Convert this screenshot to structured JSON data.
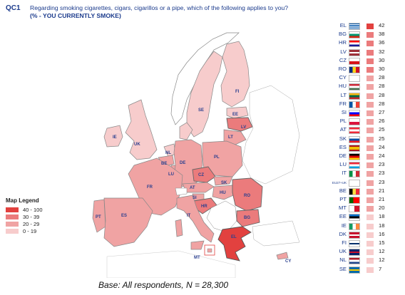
{
  "header": {
    "code": "QC1",
    "question": "Regarding smoking cigarettes, cigars, cigarillos or a pipe, which of the following applies to you?",
    "subtitle": "(% - YOU CURRENTLY SMOKE)"
  },
  "legend": {
    "title": "Map Legend",
    "items": [
      {
        "label": "40 - 100",
        "color": "#e2413f"
      },
      {
        "label": "30 - 39",
        "color": "#eb7b7c"
      },
      {
        "label": "20 - 29",
        "color": "#f0a3a3"
      },
      {
        "label": "0 - 19",
        "color": "#f7cccc"
      }
    ]
  },
  "footer": {
    "base": "Base: All respondents, N = 28,300"
  },
  "chart_data": {
    "type": "table",
    "rows": [
      {
        "code": "EL",
        "value": 42,
        "flag": "flag-gr"
      },
      {
        "code": "BG",
        "value": 38,
        "flag": "flag-bg"
      },
      {
        "code": "HR",
        "value": 36,
        "flag": "flag-hr"
      },
      {
        "code": "LV",
        "value": 32,
        "flag": "flag-lv"
      },
      {
        "code": "CZ",
        "value": 30,
        "flag": "flag-cz"
      },
      {
        "code": "RO",
        "value": 30,
        "flag": "flag-ro"
      },
      {
        "code": "CY",
        "value": 28,
        "flag": "flag-cy"
      },
      {
        "code": "HU",
        "value": 28,
        "flag": "flag-hu"
      },
      {
        "code": "LT",
        "value": 28,
        "flag": "flag-lt"
      },
      {
        "code": "FR",
        "value": 28,
        "flag": "flag-fr"
      },
      {
        "code": "SI",
        "value": 27,
        "flag": "flag-si"
      },
      {
        "code": "PL",
        "value": 26,
        "flag": "flag-pl"
      },
      {
        "code": "AT",
        "value": 25,
        "flag": "flag-at"
      },
      {
        "code": "SK",
        "value": 25,
        "flag": "flag-sk"
      },
      {
        "code": "ES",
        "value": 24,
        "flag": "flag-es"
      },
      {
        "code": "DE",
        "value": 24,
        "flag": "flag-de"
      },
      {
        "code": "LU",
        "value": 23,
        "flag": "flag-lu"
      },
      {
        "code": "IT",
        "value": 23,
        "flag": "flag-it"
      },
      {
        "code": "EU27+UK",
        "value": 23,
        "flag": "flag-eu"
      },
      {
        "code": "BE",
        "value": 21,
        "flag": "flag-be"
      },
      {
        "code": "PT",
        "value": 21,
        "flag": "flag-pt"
      },
      {
        "code": "MT",
        "value": 20,
        "flag": "flag-mt"
      },
      {
        "code": "EE",
        "value": 18,
        "flag": "flag-ee"
      },
      {
        "code": "IE",
        "value": 18,
        "flag": "flag-ie"
      },
      {
        "code": "DK",
        "value": 16,
        "flag": "flag-dk"
      },
      {
        "code": "FI",
        "value": 15,
        "flag": "flag-fi"
      },
      {
        "code": "UK",
        "value": 12,
        "flag": "flag-uk"
      },
      {
        "code": "NL",
        "value": 12,
        "flag": "flag-nl"
      },
      {
        "code": "SE",
        "value": 7,
        "flag": "flag-se"
      }
    ]
  },
  "map": {
    "labels": [
      "FI",
      "SE",
      "EE",
      "LV",
      "LT",
      "IE",
      "UK",
      "NL",
      "BE",
      "LU",
      "DE",
      "PL",
      "CZ",
      "SK",
      "AT",
      "HU",
      "SI",
      "HR",
      "RO",
      "BG",
      "FR",
      "PT",
      "ES",
      "IT",
      "EL",
      "MT",
      "CY"
    ]
  }
}
